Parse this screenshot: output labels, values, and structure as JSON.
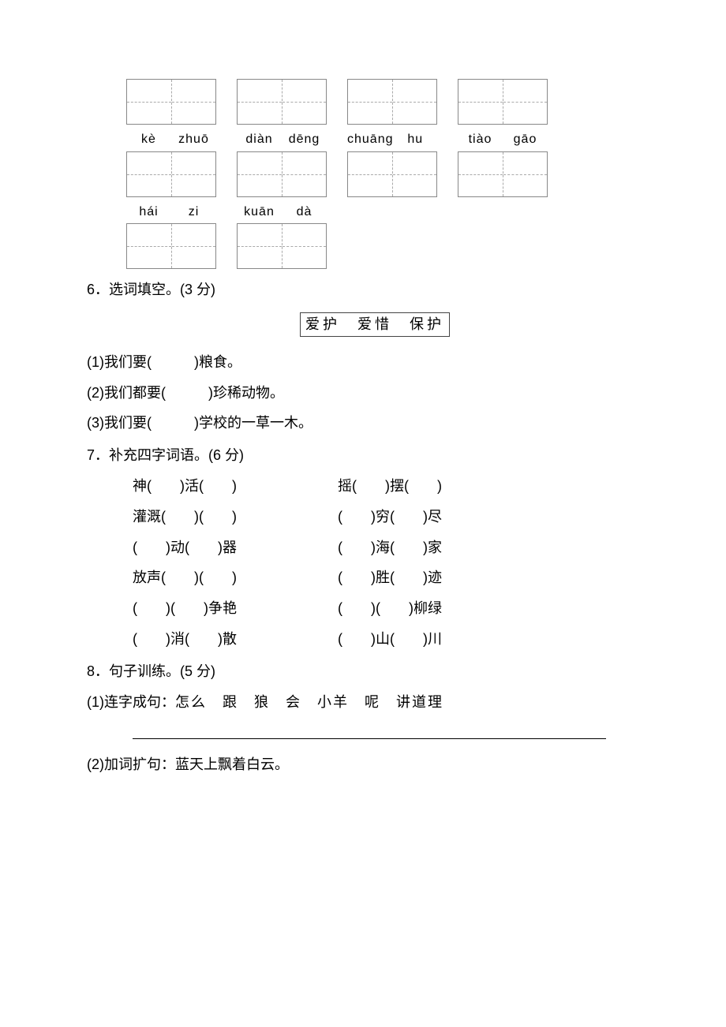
{
  "row1": {
    "boxes": [
      {
        "p1": "",
        "p2": ""
      },
      {
        "p1": "",
        "p2": ""
      },
      {
        "p1": "",
        "p2": ""
      },
      {
        "p1": "",
        "p2": ""
      }
    ]
  },
  "row2": {
    "boxes": [
      {
        "p1": "kè",
        "p2": "zhuō"
      },
      {
        "p1": "diàn",
        "p2": "dēng"
      },
      {
        "p1": "chuāng",
        "p2": "hu"
      },
      {
        "p1": "tiào",
        "p2": "gāo"
      }
    ]
  },
  "row3": {
    "boxes": [
      {
        "p1": "hái",
        "p2": "zi"
      },
      {
        "p1": "kuān",
        "p2": "dà"
      }
    ]
  },
  "q6": {
    "title": "6．选词填空。(3 分)",
    "bank": "爱护　爱惜　保护",
    "items": [
      "(1)我们要(　　　)粮食。",
      "(2)我们都要(　　　)珍稀动物。",
      "(3)我们要(　　　)学校的一草一木。"
    ]
  },
  "q7": {
    "title": "7．补充四字词语。(6 分)",
    "rows": [
      {
        "left": "神(　　)活(　　)",
        "right": "摇(　　)摆(　　)"
      },
      {
        "left": "灌溉(　　)(　　)",
        "right": "(　　)穷(　　)尽"
      },
      {
        "left": "(　　)动(　　)器",
        "right": "(　　)海(　　)家"
      },
      {
        "left": "放声(　　)(　　)",
        "right": "(　　)胜(　　)迹"
      },
      {
        "left": "(　　)(　　)争艳",
        "right": "(　　)(　　)柳绿"
      },
      {
        "left": "(　　)消(　　)散",
        "right": "(　　)山(　　)川"
      }
    ]
  },
  "q8": {
    "title": "8．句子训练。(5 分)",
    "item1_prefix": "(1)连字成句：",
    "item1_words": "怎么　跟　狼　会　小羊　呢　讲道理",
    "item2": "(2)加词扩句：蓝天上飘着白云。"
  }
}
